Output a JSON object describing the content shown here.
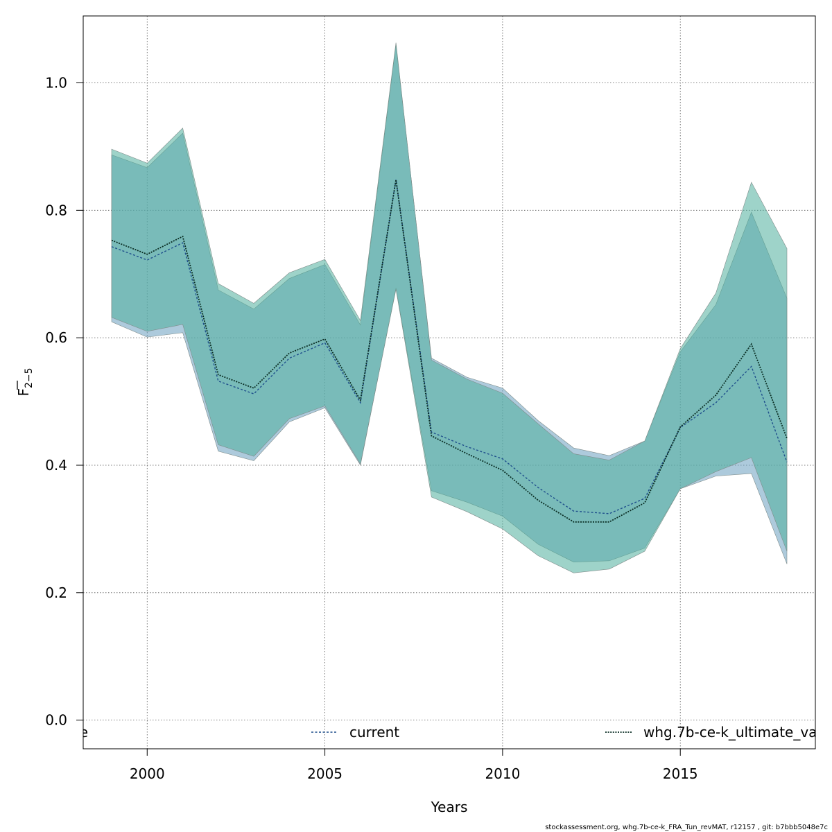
{
  "chart_data": {
    "type": "line",
    "xlabel": "Years",
    "ylabel_main": "F",
    "ylabel_sub": "2−5",
    "xlim": [
      1998.2,
      2018.8
    ],
    "ylim": [
      -0.045,
      1.105
    ],
    "x_ticks": [
      2000,
      2005,
      2010,
      2015
    ],
    "y_ticks": [
      0.0,
      0.2,
      0.4,
      0.6,
      0.8,
      1.0
    ],
    "y_tick_labels": [
      "0.0",
      "0.2",
      "0.4",
      "0.6",
      "0.8",
      "1.0"
    ],
    "grid": true,
    "x": [
      1999,
      2000,
      2001,
      2002,
      2003,
      2004,
      2005,
      2006,
      2007,
      2008,
      2009,
      2010,
      2011,
      2012,
      2013,
      2014,
      2015,
      2016,
      2017,
      2018
    ],
    "series": [
      {
        "name": "current",
        "color": "#1f4f8c",
        "band_color": "#6a9fc0",
        "values": [
          0.743,
          0.722,
          0.749,
          0.532,
          0.512,
          0.568,
          0.592,
          0.498,
          0.848,
          0.452,
          0.429,
          0.41,
          0.365,
          0.328,
          0.324,
          0.348,
          0.459,
          0.498,
          0.555,
          0.405
        ],
        "low": [
          0.625,
          0.601,
          0.608,
          0.422,
          0.407,
          0.468,
          0.49,
          0.4,
          0.678,
          0.36,
          0.342,
          0.32,
          0.276,
          0.248,
          0.25,
          0.27,
          0.363,
          0.383,
          0.387,
          0.245
        ],
        "high": [
          0.887,
          0.867,
          0.921,
          0.675,
          0.645,
          0.693,
          0.715,
          0.62,
          1.06,
          0.568,
          0.538,
          0.521,
          0.47,
          0.427,
          0.415,
          0.438,
          0.578,
          0.652,
          0.797,
          0.662
        ]
      },
      {
        "name": "whg.7b-ce-k_ultimate_va",
        "color": "#0b2f25",
        "band_color": "#4fae9c",
        "values": [
          0.753,
          0.731,
          0.759,
          0.542,
          0.521,
          0.576,
          0.598,
          0.502,
          0.848,
          0.446,
          0.418,
          0.392,
          0.345,
          0.311,
          0.311,
          0.341,
          0.46,
          0.51,
          0.59,
          0.442
        ],
        "low": [
          0.632,
          0.61,
          0.621,
          0.432,
          0.414,
          0.473,
          0.493,
          0.402,
          0.676,
          0.35,
          0.327,
          0.3,
          0.258,
          0.231,
          0.237,
          0.265,
          0.363,
          0.39,
          0.412,
          0.265
        ],
        "high": [
          0.896,
          0.874,
          0.929,
          0.685,
          0.654,
          0.702,
          0.723,
          0.627,
          1.063,
          0.565,
          0.535,
          0.513,
          0.465,
          0.418,
          0.408,
          0.438,
          0.583,
          0.67,
          0.844,
          0.74
        ]
      }
    ],
    "legend": {
      "placement": "bottom-inside",
      "entries": [
        {
          "label": "e",
          "line": false
        },
        {
          "label": "current",
          "line": true,
          "color": "#1f4f8c"
        },
        {
          "label": "whg.7b-ce-k_ultimate_va",
          "line": true,
          "color": "#0b2f25"
        }
      ]
    }
  },
  "footer_text": "stockassessment.org, whg.7b-ce-k_FRA_Tun_revMAT, r12157 , git: b7bbb5048e7c"
}
